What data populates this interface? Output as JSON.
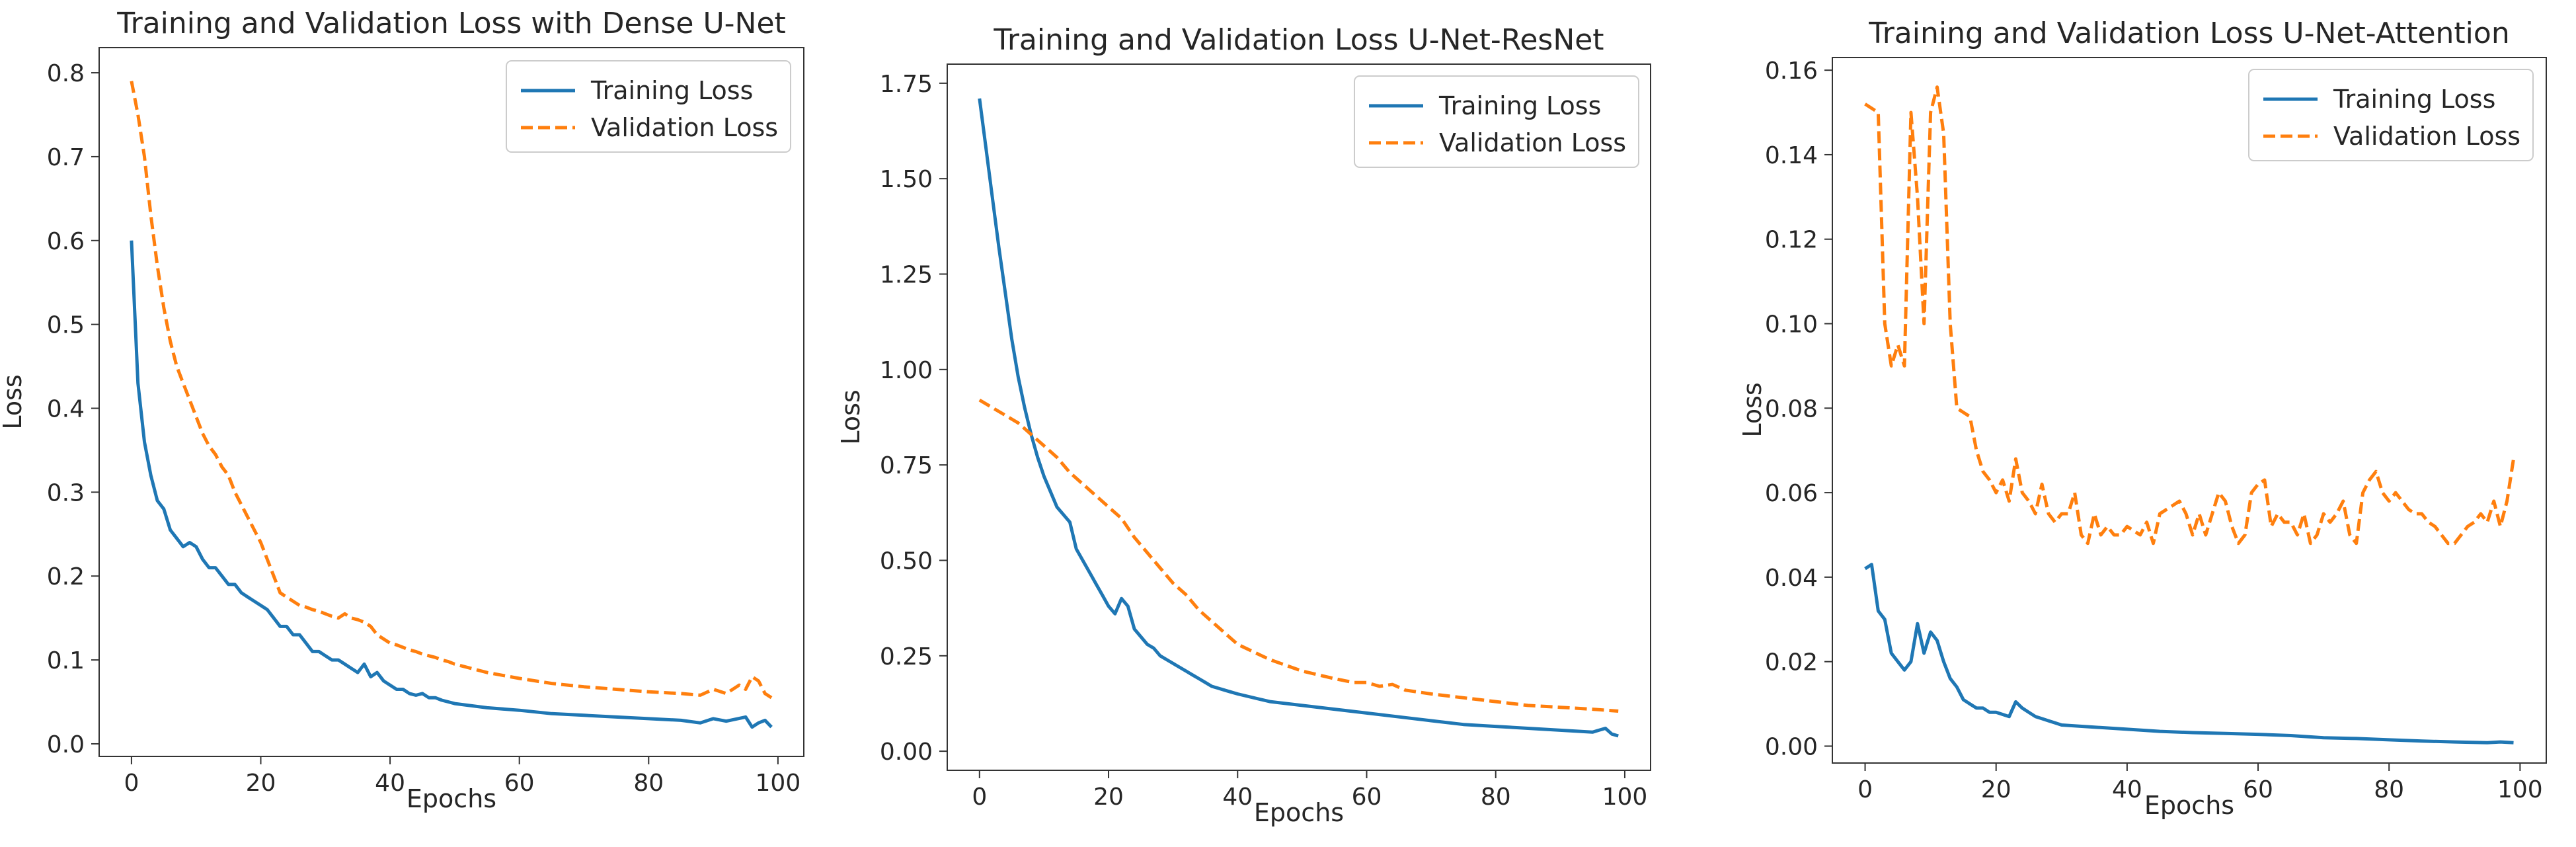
{
  "figure": {
    "colors": {
      "training": "#1f77b4",
      "validation": "#ff7f0e",
      "axes": "#333333",
      "text": "#262626"
    }
  },
  "chart_data": [
    {
      "type": "line",
      "title": "Training and Validation Loss with Dense U-Net",
      "xlabel": "Epochs",
      "ylabel": "Loss",
      "xlim": [
        -5,
        104
      ],
      "ylim": [
        -0.015,
        0.83
      ],
      "xticks": [
        0,
        20,
        40,
        60,
        80,
        100
      ],
      "xtick_labels": [
        "0",
        "20",
        "40",
        "60",
        "80",
        "100"
      ],
      "yticks": [
        0.0,
        0.1,
        0.2,
        0.3,
        0.4,
        0.5,
        0.6,
        0.7,
        0.8
      ],
      "ytick_labels": [
        "0.0",
        "0.1",
        "0.2",
        "0.3",
        "0.4",
        "0.5",
        "0.6",
        "0.7",
        "0.8"
      ],
      "legend_position": "top-right",
      "grid": false,
      "series": [
        {
          "name": "Training Loss",
          "style": "solid",
          "x": [
            0,
            1,
            2,
            3,
            4,
            5,
            6,
            7,
            8,
            9,
            10,
            11,
            12,
            13,
            14,
            15,
            16,
            17,
            18,
            19,
            20,
            21,
            22,
            23,
            24,
            25,
            26,
            27,
            28,
            29,
            30,
            31,
            32,
            33,
            34,
            35,
            36,
            37,
            38,
            39,
            40,
            41,
            42,
            43,
            44,
            45,
            46,
            47,
            48,
            49,
            50,
            55,
            60,
            65,
            70,
            75,
            80,
            85,
            88,
            90,
            92,
            95,
            96,
            97,
            98,
            99
          ],
          "values": [
            0.6,
            0.43,
            0.36,
            0.32,
            0.29,
            0.28,
            0.255,
            0.245,
            0.235,
            0.24,
            0.235,
            0.22,
            0.21,
            0.21,
            0.2,
            0.19,
            0.19,
            0.18,
            0.175,
            0.17,
            0.165,
            0.16,
            0.15,
            0.14,
            0.14,
            0.13,
            0.13,
            0.12,
            0.11,
            0.11,
            0.105,
            0.1,
            0.1,
            0.095,
            0.09,
            0.085,
            0.095,
            0.08,
            0.085,
            0.075,
            0.07,
            0.065,
            0.065,
            0.06,
            0.058,
            0.06,
            0.055,
            0.055,
            0.052,
            0.05,
            0.048,
            0.043,
            0.04,
            0.036,
            0.034,
            0.032,
            0.03,
            0.028,
            0.025,
            0.03,
            0.027,
            0.032,
            0.02,
            0.025,
            0.028,
            0.02
          ]
        },
        {
          "name": "Validation Loss",
          "style": "dashed",
          "x": [
            0,
            1,
            2,
            3,
            4,
            5,
            6,
            7,
            8,
            9,
            10,
            11,
            12,
            13,
            14,
            15,
            16,
            17,
            18,
            19,
            20,
            21,
            22,
            23,
            24,
            25,
            26,
            27,
            28,
            29,
            30,
            31,
            32,
            33,
            34,
            35,
            36,
            37,
            38,
            39,
            40,
            41,
            42,
            43,
            44,
            45,
            46,
            47,
            48,
            49,
            50,
            55,
            60,
            65,
            70,
            75,
            80,
            85,
            88,
            90,
            92,
            94,
            95,
            96,
            97,
            98,
            99
          ],
          "values": [
            0.79,
            0.75,
            0.7,
            0.63,
            0.57,
            0.52,
            0.48,
            0.45,
            0.43,
            0.41,
            0.39,
            0.37,
            0.355,
            0.345,
            0.33,
            0.32,
            0.3,
            0.285,
            0.27,
            0.255,
            0.24,
            0.22,
            0.2,
            0.18,
            0.175,
            0.17,
            0.165,
            0.163,
            0.16,
            0.158,
            0.155,
            0.152,
            0.15,
            0.155,
            0.15,
            0.148,
            0.145,
            0.14,
            0.13,
            0.125,
            0.12,
            0.118,
            0.115,
            0.112,
            0.11,
            0.107,
            0.105,
            0.103,
            0.1,
            0.098,
            0.095,
            0.085,
            0.078,
            0.072,
            0.068,
            0.065,
            0.062,
            0.06,
            0.058,
            0.065,
            0.06,
            0.07,
            0.065,
            0.08,
            0.075,
            0.06,
            0.055
          ]
        }
      ]
    },
    {
      "type": "line",
      "title": "Training and Validation Loss U-Net-ResNet",
      "xlabel": "Epochs",
      "ylabel": "Loss",
      "xlim": [
        -5,
        104
      ],
      "ylim": [
        -0.05,
        1.8
      ],
      "xticks": [
        0,
        20,
        40,
        60,
        80,
        100
      ],
      "xtick_labels": [
        "0",
        "20",
        "40",
        "60",
        "80",
        "100"
      ],
      "yticks": [
        0.0,
        0.25,
        0.5,
        0.75,
        1.0,
        1.25,
        1.5,
        1.75
      ],
      "ytick_labels": [
        "0.00",
        "0.25",
        "0.50",
        "0.75",
        "1.00",
        "1.25",
        "1.50",
        "1.75"
      ],
      "legend_position": "top-right",
      "grid": false,
      "series": [
        {
          "name": "Training Loss",
          "style": "solid",
          "x": [
            0,
            1,
            2,
            3,
            4,
            5,
            6,
            7,
            8,
            9,
            10,
            11,
            12,
            13,
            14,
            15,
            16,
            17,
            18,
            19,
            20,
            21,
            22,
            23,
            24,
            25,
            26,
            27,
            28,
            29,
            30,
            31,
            32,
            33,
            34,
            35,
            36,
            37,
            38,
            39,
            40,
            45,
            50,
            55,
            60,
            65,
            70,
            75,
            80,
            85,
            90,
            95,
            96,
            97,
            98,
            99
          ],
          "values": [
            1.71,
            1.58,
            1.45,
            1.32,
            1.2,
            1.08,
            0.98,
            0.9,
            0.83,
            0.77,
            0.72,
            0.68,
            0.64,
            0.62,
            0.6,
            0.53,
            0.5,
            0.47,
            0.44,
            0.41,
            0.38,
            0.36,
            0.4,
            0.38,
            0.32,
            0.3,
            0.28,
            0.27,
            0.25,
            0.24,
            0.23,
            0.22,
            0.21,
            0.2,
            0.19,
            0.18,
            0.17,
            0.165,
            0.16,
            0.155,
            0.15,
            0.13,
            0.12,
            0.11,
            0.1,
            0.09,
            0.08,
            0.07,
            0.065,
            0.06,
            0.055,
            0.05,
            0.055,
            0.06,
            0.045,
            0.04
          ]
        },
        {
          "name": "Validation Loss",
          "style": "dashed",
          "x": [
            0,
            2,
            4,
            6,
            8,
            10,
            12,
            14,
            16,
            18,
            20,
            22,
            24,
            26,
            28,
            30,
            32,
            34,
            36,
            38,
            40,
            45,
            50,
            55,
            58,
            60,
            62,
            64,
            66,
            70,
            75,
            80,
            85,
            90,
            95,
            99
          ],
          "values": [
            0.92,
            0.9,
            0.88,
            0.86,
            0.83,
            0.8,
            0.77,
            0.73,
            0.7,
            0.67,
            0.64,
            0.61,
            0.56,
            0.52,
            0.48,
            0.44,
            0.41,
            0.37,
            0.34,
            0.31,
            0.28,
            0.24,
            0.21,
            0.19,
            0.18,
            0.18,
            0.17,
            0.175,
            0.16,
            0.15,
            0.14,
            0.13,
            0.12,
            0.115,
            0.11,
            0.105
          ]
        }
      ]
    },
    {
      "type": "line",
      "title": "Training and Validation Loss U-Net-Attention",
      "xlabel": "Epochs",
      "ylabel": "Loss",
      "xlim": [
        -5,
        104
      ],
      "ylim": [
        -0.004,
        0.163
      ],
      "xticks": [
        0,
        20,
        40,
        60,
        80,
        100
      ],
      "xtick_labels": [
        "0",
        "20",
        "40",
        "60",
        "80",
        "100"
      ],
      "yticks": [
        0.0,
        0.02,
        0.04,
        0.06,
        0.08,
        0.1,
        0.12,
        0.14,
        0.16
      ],
      "ytick_labels": [
        "0.00",
        "0.02",
        "0.04",
        "0.06",
        "0.08",
        "0.10",
        "0.12",
        "0.14",
        "0.16"
      ],
      "legend_position": "top-right",
      "grid": false,
      "series": [
        {
          "name": "Training Loss",
          "style": "solid",
          "x": [
            0,
            1,
            2,
            3,
            4,
            5,
            6,
            7,
            8,
            9,
            10,
            11,
            12,
            13,
            14,
            15,
            16,
            17,
            18,
            19,
            20,
            21,
            22,
            23,
            24,
            25,
            26,
            27,
            28,
            29,
            30,
            35,
            40,
            45,
            50,
            55,
            60,
            65,
            70,
            75,
            80,
            85,
            90,
            95,
            97,
            99
          ],
          "values": [
            0.042,
            0.043,
            0.032,
            0.03,
            0.022,
            0.02,
            0.018,
            0.02,
            0.029,
            0.022,
            0.027,
            0.025,
            0.02,
            0.016,
            0.014,
            0.011,
            0.01,
            0.009,
            0.009,
            0.008,
            0.008,
            0.0075,
            0.007,
            0.0105,
            0.009,
            0.008,
            0.007,
            0.0065,
            0.006,
            0.0055,
            0.005,
            0.0045,
            0.004,
            0.0035,
            0.0032,
            0.003,
            0.0028,
            0.0025,
            0.002,
            0.0018,
            0.0015,
            0.0012,
            0.001,
            0.0008,
            0.001,
            0.0008
          ]
        },
        {
          "name": "Validation Loss",
          "style": "dashed",
          "x": [
            0,
            1,
            2,
            3,
            4,
            5,
            6,
            7,
            8,
            9,
            10,
            11,
            12,
            13,
            14,
            15,
            16,
            17,
            18,
            19,
            20,
            21,
            22,
            23,
            24,
            25,
            26,
            27,
            28,
            29,
            30,
            31,
            32,
            33,
            34,
            35,
            36,
            37,
            38,
            39,
            40,
            41,
            42,
            43,
            44,
            45,
            46,
            47,
            48,
            49,
            50,
            51,
            52,
            53,
            54,
            55,
            56,
            57,
            58,
            59,
            60,
            61,
            62,
            63,
            64,
            65,
            66,
            67,
            68,
            69,
            70,
            71,
            72,
            73,
            74,
            75,
            76,
            77,
            78,
            79,
            80,
            81,
            82,
            83,
            84,
            85,
            86,
            87,
            88,
            89,
            90,
            91,
            92,
            93,
            94,
            95,
            96,
            97,
            98,
            99
          ],
          "values": [
            0.152,
            0.151,
            0.15,
            0.1,
            0.09,
            0.095,
            0.09,
            0.15,
            0.13,
            0.1,
            0.15,
            0.156,
            0.145,
            0.1,
            0.08,
            0.079,
            0.078,
            0.07,
            0.065,
            0.063,
            0.06,
            0.063,
            0.058,
            0.068,
            0.06,
            0.058,
            0.055,
            0.062,
            0.055,
            0.053,
            0.055,
            0.055,
            0.06,
            0.05,
            0.048,
            0.055,
            0.05,
            0.052,
            0.05,
            0.05,
            0.052,
            0.051,
            0.05,
            0.053,
            0.048,
            0.055,
            0.056,
            0.057,
            0.058,
            0.055,
            0.05,
            0.055,
            0.05,
            0.055,
            0.06,
            0.058,
            0.052,
            0.048,
            0.05,
            0.06,
            0.062,
            0.063,
            0.052,
            0.055,
            0.053,
            0.053,
            0.05,
            0.055,
            0.048,
            0.05,
            0.055,
            0.053,
            0.055,
            0.058,
            0.05,
            0.048,
            0.06,
            0.063,
            0.065,
            0.06,
            0.058,
            0.06,
            0.058,
            0.056,
            0.055,
            0.055,
            0.053,
            0.052,
            0.05,
            0.048,
            0.048,
            0.05,
            0.052,
            0.053,
            0.055,
            0.053,
            0.058,
            0.052,
            0.058,
            0.068
          ]
        }
      ]
    }
  ]
}
